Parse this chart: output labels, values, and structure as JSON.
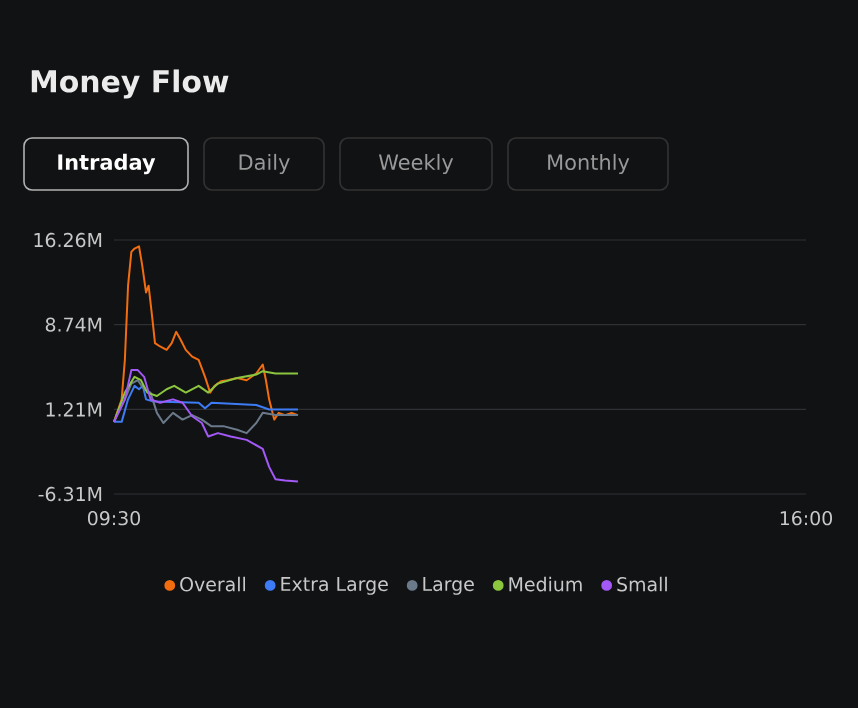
{
  "chart_data": {
    "type": "line",
    "title": "Money Flow",
    "annotations": [
      "Intraday",
      "Daily",
      "Weekly",
      "Monthly"
    ],
    "xlim": [
      9.5,
      16
    ],
    "xticks": [
      {
        "value": 9.5,
        "label": "09:30"
      },
      {
        "value": 16,
        "label": "16:00"
      }
    ],
    "ylim": [
      -6.31,
      16.26
    ],
    "yticks": [
      {
        "value": -6.31,
        "label": "-6.31M"
      },
      {
        "value": 1.21,
        "label": "1.21M"
      },
      {
        "value": 8.74,
        "label": "8.74M"
      },
      {
        "value": 16.26,
        "label": "16.26M"
      }
    ],
    "grid": "y",
    "legend": "bottom",
    "marker": "none",
    "line_style": "solid",
    "series": [
      {
        "name": "Overall",
        "color": "#f26d0f",
        "x": [
          9.5,
          9.572,
          9.602,
          9.632,
          9.663,
          9.693,
          9.735,
          9.765,
          9.801,
          9.825,
          9.861,
          9.885,
          9.933,
          9.994,
          10.042,
          10.084,
          10.126,
          10.174,
          10.234,
          10.295,
          10.355,
          10.403,
          10.445,
          10.505,
          10.566,
          10.656,
          10.746,
          10.836,
          10.897,
          10.927,
          10.957,
          11.005,
          11.047,
          11.107,
          11.168,
          11.228
        ],
        "values": [
          0.1,
          2.1,
          5.6,
          12.2,
          15.2,
          15.5,
          15.7,
          14.0,
          11.6,
          12.2,
          9.2,
          7.1,
          6.8,
          6.5,
          7.1,
          8.1,
          7.4,
          6.5,
          5.9,
          5.6,
          4.1,
          2.7,
          3.3,
          3.7,
          3.8,
          4.0,
          3.8,
          4.4,
          5.2,
          3.8,
          2.1,
          0.3,
          0.9,
          0.7,
          0.9,
          0.7
        ]
      },
      {
        "name": "Extra Large",
        "color": "#3d7cf5",
        "x": [
          9.5,
          9.572,
          9.632,
          9.693,
          9.735,
          9.771,
          9.801,
          9.873,
          10.295,
          10.355,
          10.416,
          10.836,
          10.957,
          11.228
        ],
        "values": [
          0.1,
          0.1,
          2.1,
          3.3,
          3.0,
          3.3,
          2.1,
          1.9,
          1.8,
          1.3,
          1.8,
          1.6,
          1.2,
          1.2
        ]
      },
      {
        "name": "Large",
        "color": "#6b7a8a",
        "x": [
          9.5,
          9.602,
          9.663,
          9.723,
          9.783,
          9.843,
          9.903,
          9.964,
          10.054,
          10.144,
          10.234,
          10.325,
          10.416,
          10.536,
          10.656,
          10.746,
          10.836,
          10.897,
          11.017,
          11.228
        ],
        "values": [
          0.1,
          2.1,
          3.5,
          3.8,
          3.0,
          2.7,
          0.9,
          0.0,
          0.9,
          0.3,
          0.7,
          0.3,
          -0.3,
          -0.3,
          -0.6,
          -0.9,
          0.0,
          0.9,
          0.7,
          0.7
        ]
      },
      {
        "name": "Medium",
        "color": "#8cc63f",
        "x": [
          9.5,
          9.602,
          9.693,
          9.753,
          9.813,
          9.903,
          9.994,
          10.066,
          10.174,
          10.295,
          10.385,
          10.476,
          10.656,
          10.836,
          10.897,
          11.017,
          11.228
        ],
        "values": [
          0.1,
          2.7,
          4.1,
          3.8,
          2.7,
          2.4,
          3.0,
          3.3,
          2.7,
          3.3,
          2.7,
          3.5,
          4.0,
          4.3,
          4.6,
          4.4,
          4.4
        ]
      },
      {
        "name": "Small",
        "color": "#a259f5",
        "x": [
          9.5,
          9.602,
          9.663,
          9.723,
          9.783,
          9.843,
          9.933,
          10.054,
          10.144,
          10.234,
          10.325,
          10.385,
          10.476,
          10.596,
          10.746,
          10.897,
          10.957,
          11.017,
          11.107,
          11.228
        ],
        "values": [
          0.1,
          2.1,
          4.7,
          4.7,
          4.1,
          2.1,
          1.8,
          2.1,
          1.8,
          0.6,
          0.0,
          -1.2,
          -0.9,
          -1.2,
          -1.5,
          -2.3,
          -3.9,
          -5.0,
          -5.1,
          -5.2
        ]
      }
    ]
  }
}
